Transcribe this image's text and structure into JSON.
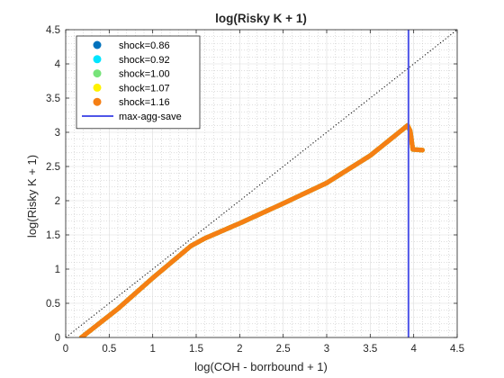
{
  "chart_data": {
    "type": "scatter",
    "title": "log(Risky K + 1)",
    "xlabel": "log(COH - borrbound + 1)",
    "ylabel": "log(Risky K + 1)",
    "xlim": [
      0,
      4.5
    ],
    "ylim": [
      0,
      4.5
    ],
    "xticks": [
      "0",
      "0.5",
      "1",
      "1.5",
      "2",
      "2.5",
      "3",
      "3.5",
      "4",
      "4.5"
    ],
    "yticks": [
      "0",
      "0.5",
      "1",
      "1.5",
      "2",
      "2.5",
      "3",
      "3.5",
      "4",
      "4.5"
    ],
    "grid": true,
    "minor_grid": true,
    "legend_position": "top-left",
    "series": [
      {
        "name": "shock=0.86",
        "color": "#0072BD",
        "marker": "circle",
        "points": [
          [
            0.18,
            0
          ],
          [
            0.6,
            0.42
          ],
          [
            1.0,
            0.87
          ],
          [
            1.44,
            1.34
          ],
          [
            1.6,
            1.45
          ],
          [
            2.0,
            1.67
          ],
          [
            2.5,
            1.96
          ],
          [
            3.0,
            2.26
          ],
          [
            3.5,
            2.66
          ],
          [
            3.93,
            3.1
          ],
          [
            3.96,
            3.02
          ],
          [
            3.99,
            2.75
          ],
          [
            4.1,
            2.74
          ]
        ]
      },
      {
        "name": "shock=0.92",
        "color": "#00E5FF",
        "marker": "circle",
        "points": [
          [
            0.18,
            0
          ],
          [
            0.6,
            0.42
          ],
          [
            1.0,
            0.87
          ],
          [
            1.44,
            1.34
          ],
          [
            1.6,
            1.45
          ],
          [
            2.0,
            1.67
          ],
          [
            2.5,
            1.96
          ],
          [
            3.0,
            2.26
          ],
          [
            3.5,
            2.66
          ],
          [
            3.93,
            3.1
          ],
          [
            3.96,
            3.02
          ],
          [
            3.99,
            2.75
          ],
          [
            4.1,
            2.74
          ]
        ]
      },
      {
        "name": "shock=1.00",
        "color": "#77E37A",
        "marker": "circle",
        "points": [
          [
            0.18,
            0
          ],
          [
            0.6,
            0.42
          ],
          [
            1.0,
            0.87
          ],
          [
            1.44,
            1.34
          ],
          [
            1.6,
            1.45
          ],
          [
            2.0,
            1.67
          ],
          [
            2.5,
            1.96
          ],
          [
            3.0,
            2.26
          ],
          [
            3.5,
            2.66
          ],
          [
            3.93,
            3.1
          ],
          [
            3.96,
            3.02
          ],
          [
            3.99,
            2.75
          ],
          [
            4.1,
            2.74
          ]
        ]
      },
      {
        "name": "shock=1.07",
        "color": "#FFF200",
        "marker": "circle",
        "points": [
          [
            0.18,
            0
          ],
          [
            0.6,
            0.42
          ],
          [
            1.0,
            0.87
          ],
          [
            1.44,
            1.34
          ],
          [
            1.6,
            1.45
          ],
          [
            2.0,
            1.67
          ],
          [
            2.5,
            1.96
          ],
          [
            3.0,
            2.26
          ],
          [
            3.5,
            2.66
          ],
          [
            3.93,
            3.1
          ],
          [
            3.96,
            3.02
          ],
          [
            3.99,
            2.75
          ],
          [
            4.1,
            2.74
          ]
        ]
      },
      {
        "name": "shock=1.16",
        "color": "#F57F14",
        "marker": "circle",
        "points": [
          [
            0.18,
            0
          ],
          [
            0.6,
            0.42
          ],
          [
            1.0,
            0.87
          ],
          [
            1.44,
            1.34
          ],
          [
            1.6,
            1.45
          ],
          [
            2.0,
            1.67
          ],
          [
            2.5,
            1.96
          ],
          [
            3.0,
            2.26
          ],
          [
            3.5,
            2.66
          ],
          [
            3.93,
            3.1
          ],
          [
            3.96,
            3.02
          ],
          [
            3.99,
            2.75
          ],
          [
            4.1,
            2.74
          ]
        ]
      }
    ],
    "vline": {
      "name": "max-agg-save",
      "x": 3.94,
      "color": "#4F55E8"
    },
    "diagonal": {
      "style": "dotted",
      "color": "#000000",
      "from": [
        0,
        0
      ],
      "to": [
        4.5,
        4.5
      ]
    }
  }
}
